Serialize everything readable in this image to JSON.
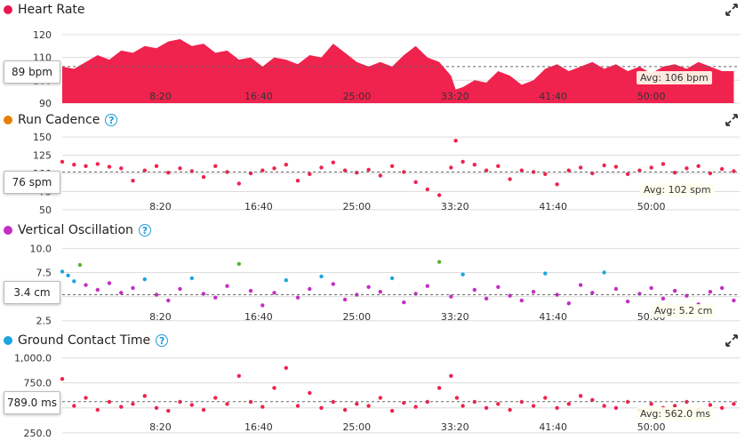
{
  "charts": [
    {
      "key": "hr",
      "title": "Heart Rate",
      "dot_color": "#e8174e",
      "help": false,
      "current": "89 bpm",
      "average": "Avg: 106 bpm",
      "y_ticks": [
        "120",
        "110",
        "100",
        "90"
      ],
      "y_tick_values": [
        120,
        110,
        100,
        90
      ],
      "y_range": [
        90,
        125
      ],
      "avg_value": 106,
      "x_ticks": [
        "8:20",
        "16:40",
        "25:00",
        "33:20",
        "41:40",
        "50:00"
      ],
      "x_tick_minutes": [
        8.333,
        16.667,
        25,
        33.333,
        41.667,
        50
      ],
      "x_range_minutes": [
        0,
        57.5
      ],
      "type": "area",
      "color": "#f0224e",
      "series": [
        [
          0,
          106
        ],
        [
          1,
          105
        ],
        [
          2,
          108
        ],
        [
          3,
          111
        ],
        [
          4,
          109
        ],
        [
          5,
          113
        ],
        [
          6,
          112
        ],
        [
          7,
          115
        ],
        [
          8,
          114
        ],
        [
          9,
          117
        ],
        [
          10,
          118
        ],
        [
          11,
          115
        ],
        [
          12,
          116
        ],
        [
          13,
          112
        ],
        [
          14,
          113
        ],
        [
          15,
          109
        ],
        [
          16,
          110
        ],
        [
          17,
          106
        ],
        [
          18,
          110
        ],
        [
          19,
          109
        ],
        [
          20,
          107
        ],
        [
          21,
          111
        ],
        [
          22,
          110
        ],
        [
          23,
          116
        ],
        [
          24,
          112
        ],
        [
          25,
          108
        ],
        [
          26,
          106
        ],
        [
          27,
          108
        ],
        [
          28,
          106
        ],
        [
          29,
          111
        ],
        [
          30,
          115
        ],
        [
          31,
          110
        ],
        [
          32,
          108
        ],
        [
          33,
          102
        ],
        [
          33.4,
          96
        ],
        [
          34,
          97
        ],
        [
          35,
          100
        ],
        [
          36,
          99
        ],
        [
          37,
          104
        ],
        [
          38,
          102
        ],
        [
          39,
          98
        ],
        [
          40,
          100
        ],
        [
          41,
          105
        ],
        [
          42,
          107
        ],
        [
          43,
          104
        ],
        [
          44,
          106
        ],
        [
          45,
          108
        ],
        [
          46,
          105
        ],
        [
          47,
          107
        ],
        [
          48,
          104
        ],
        [
          49,
          106
        ],
        [
          50,
          103
        ],
        [
          51,
          106
        ],
        [
          52,
          107
        ],
        [
          53,
          105
        ],
        [
          54,
          108
        ],
        [
          55,
          106
        ],
        [
          56,
          104
        ],
        [
          57,
          104
        ]
      ]
    },
    {
      "key": "cad",
      "title": "Run Cadence",
      "dot_color": "#e67e00",
      "help": true,
      "current": "76 spm",
      "average": "Avg: 102 spm",
      "y_ticks": [
        "150",
        "125",
        "100",
        "75",
        "50"
      ],
      "y_tick_values": [
        150,
        125,
        100,
        75,
        50
      ],
      "y_range": [
        45,
        155
      ],
      "avg_value": 102,
      "x_ticks": [
        "8:20",
        "16:40",
        "25:00",
        "33:20",
        "41:40",
        "50:00"
      ],
      "x_tick_minutes": [
        8.333,
        16.667,
        25,
        33.333,
        41.667,
        50
      ],
      "x_range_minutes": [
        0,
        57.5
      ],
      "type": "scatter",
      "color": "#f0224e",
      "series": [
        [
          0,
          116
        ],
        [
          1,
          112
        ],
        [
          2,
          110
        ],
        [
          3,
          113
        ],
        [
          4,
          109
        ],
        [
          5,
          107
        ],
        [
          6,
          90
        ],
        [
          7,
          104
        ],
        [
          8,
          110
        ],
        [
          9,
          101
        ],
        [
          10,
          107
        ],
        [
          11,
          103
        ],
        [
          12,
          95
        ],
        [
          13,
          110
        ],
        [
          14,
          102
        ],
        [
          15,
          86
        ],
        [
          16,
          100
        ],
        [
          17,
          104
        ],
        [
          18,
          107
        ],
        [
          19,
          112
        ],
        [
          20,
          90
        ],
        [
          21,
          99
        ],
        [
          22,
          108
        ],
        [
          23,
          115
        ],
        [
          24,
          104
        ],
        [
          25,
          101
        ],
        [
          26,
          105
        ],
        [
          27,
          97
        ],
        [
          28,
          110
        ],
        [
          29,
          102
        ],
        [
          30,
          88
        ],
        [
          31,
          78
        ],
        [
          32,
          70
        ],
        [
          33,
          108
        ],
        [
          33.4,
          145
        ],
        [
          34,
          116
        ],
        [
          35,
          112
        ],
        [
          36,
          104
        ],
        [
          37,
          110
        ],
        [
          38,
          92
        ],
        [
          39,
          104
        ],
        [
          40,
          102
        ],
        [
          41,
          99
        ],
        [
          42,
          85
        ],
        [
          43,
          104
        ],
        [
          44,
          108
        ],
        [
          45,
          100
        ],
        [
          46,
          111
        ],
        [
          47,
          109
        ],
        [
          48,
          99
        ],
        [
          49,
          104
        ],
        [
          50,
          108
        ],
        [
          51,
          113
        ],
        [
          52,
          101
        ],
        [
          53,
          107
        ],
        [
          54,
          110
        ],
        [
          55,
          100
        ],
        [
          56,
          106
        ],
        [
          57,
          103
        ]
      ]
    },
    {
      "key": "vo",
      "title": "Vertical Oscillation",
      "dot_color": "#c42ec4",
      "help": true,
      "current": "3.4 cm",
      "average": "Avg: 5.2 cm",
      "y_ticks": [
        "10.0",
        "7.5",
        "5.0",
        "2.5"
      ],
      "y_tick_values": [
        10,
        7.5,
        5,
        2.5
      ],
      "y_range": [
        2.2,
        10.5
      ],
      "avg_value": 5.2,
      "x_ticks": [
        "8:20",
        "16:40",
        "25:00",
        "33:20",
        "41:40",
        "50:00"
      ],
      "x_tick_minutes": [
        8.333,
        16.667,
        25,
        33.333,
        41.667,
        50
      ],
      "x_range_minutes": [
        0,
        57.5
      ],
      "type": "scatter",
      "color": "#c42ec4",
      "color_high": "#1ba6e0",
      "color_top": "#55b52e",
      "series": [
        [
          0,
          7.6
        ],
        [
          0.5,
          7.2
        ],
        [
          1,
          6.6
        ],
        [
          1.5,
          8.3
        ],
        [
          2,
          6.2
        ],
        [
          3,
          5.7
        ],
        [
          4,
          6.4
        ],
        [
          5,
          5.4
        ],
        [
          6,
          5.9
        ],
        [
          7,
          6.8
        ],
        [
          8,
          5.2
        ],
        [
          9,
          4.6
        ],
        [
          10,
          5.8
        ],
        [
          11,
          6.9
        ],
        [
          12,
          5.3
        ],
        [
          13,
          4.9
        ],
        [
          14,
          6.1
        ],
        [
          15,
          8.4
        ],
        [
          16,
          5.6
        ],
        [
          17,
          4.1
        ],
        [
          18,
          5.4
        ],
        [
          19,
          6.7
        ],
        [
          20,
          4.9
        ],
        [
          21,
          5.8
        ],
        [
          22,
          7.1
        ],
        [
          23,
          6.3
        ],
        [
          24,
          4.7
        ],
        [
          25,
          5.2
        ],
        [
          26,
          6.0
        ],
        [
          27,
          5.5
        ],
        [
          28,
          6.9
        ],
        [
          29,
          4.4
        ],
        [
          30,
          5.3
        ],
        [
          31,
          6.1
        ],
        [
          32,
          8.6
        ],
        [
          33,
          5.0
        ],
        [
          34,
          7.3
        ],
        [
          35,
          5.7
        ],
        [
          36,
          4.8
        ],
        [
          37,
          6.0
        ],
        [
          38,
          5.1
        ],
        [
          39,
          4.6
        ],
        [
          40,
          5.5
        ],
        [
          41,
          7.4
        ],
        [
          42,
          5.2
        ],
        [
          43,
          4.3
        ],
        [
          44,
          6.2
        ],
        [
          45,
          5.4
        ],
        [
          46,
          7.5
        ],
        [
          47,
          5.8
        ],
        [
          48,
          4.5
        ],
        [
          49,
          5.3
        ],
        [
          50,
          5.9
        ],
        [
          51,
          4.8
        ],
        [
          52,
          5.6
        ],
        [
          53,
          5.1
        ],
        [
          54,
          4.2
        ],
        [
          55,
          5.5
        ],
        [
          56,
          5.9
        ],
        [
          57,
          4.6
        ]
      ]
    },
    {
      "key": "gct",
      "title": "Ground Contact Time",
      "dot_color": "#1ba6e0",
      "help": true,
      "current": "789.0 ms",
      "average": "Avg: 562.0 ms",
      "y_ticks": [
        "1,000.0",
        "750.0",
        "500.0",
        "250.0"
      ],
      "y_tick_values": [
        1000,
        750,
        500,
        250
      ],
      "y_range": [
        240,
        1040
      ],
      "avg_value": 562,
      "x_ticks": [
        "8:20",
        "16:40",
        "25:00",
        "33:20",
        "41:40",
        "50:00"
      ],
      "x_tick_minutes": [
        8.333,
        16.667,
        25,
        33.333,
        41.667,
        50
      ],
      "x_range_minutes": [
        0,
        57.5
      ],
      "type": "scatter",
      "color": "#f0224e",
      "series": [
        [
          0,
          789
        ],
        [
          1,
          520
        ],
        [
          2,
          600
        ],
        [
          3,
          480
        ],
        [
          4,
          560
        ],
        [
          5,
          510
        ],
        [
          6,
          540
        ],
        [
          7,
          620
        ],
        [
          8,
          500
        ],
        [
          9,
          470
        ],
        [
          10,
          560
        ],
        [
          11,
          530
        ],
        [
          12,
          480
        ],
        [
          13,
          600
        ],
        [
          14,
          540
        ],
        [
          15,
          820
        ],
        [
          16,
          560
        ],
        [
          17,
          510
        ],
        [
          18,
          700
        ],
        [
          19,
          900
        ],
        [
          20,
          520
        ],
        [
          21,
          650
        ],
        [
          22,
          500
        ],
        [
          23,
          560
        ],
        [
          24,
          480
        ],
        [
          25,
          540
        ],
        [
          26,
          520
        ],
        [
          27,
          600
        ],
        [
          28,
          470
        ],
        [
          29,
          550
        ],
        [
          30,
          510
        ],
        [
          31,
          560
        ],
        [
          32,
          700
        ],
        [
          33,
          820
        ],
        [
          33.5,
          600
        ],
        [
          34,
          520
        ],
        [
          35,
          560
        ],
        [
          36,
          500
        ],
        [
          37,
          540
        ],
        [
          38,
          480
        ],
        [
          39,
          560
        ],
        [
          40,
          520
        ],
        [
          41,
          600
        ],
        [
          42,
          500
        ],
        [
          43,
          540
        ],
        [
          44,
          620
        ],
        [
          45,
          580
        ],
        [
          46,
          520
        ],
        [
          47,
          500
        ],
        [
          48,
          560
        ],
        [
          49,
          480
        ],
        [
          50,
          540
        ],
        [
          51,
          500
        ],
        [
          52,
          520
        ],
        [
          53,
          560
        ],
        [
          54,
          480
        ],
        [
          55,
          530
        ],
        [
          56,
          500
        ],
        [
          57,
          540
        ]
      ]
    }
  ]
}
